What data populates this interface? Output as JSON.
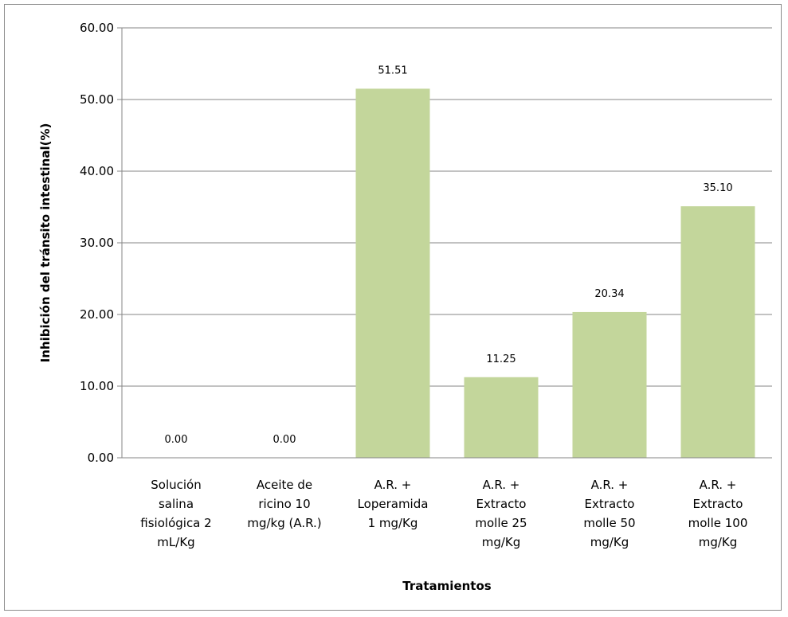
{
  "chart_data": {
    "type": "bar",
    "title": "",
    "xlabel": "Tratamientos",
    "ylabel": "Inhibición del tránsito intestinal(%)",
    "ylim": [
      0,
      60
    ],
    "yticks": [
      "0.00",
      "10.00",
      "20.00",
      "30.00",
      "40.00",
      "50.00",
      "60.00"
    ],
    "grid": true,
    "legend": "none",
    "bar_color": "#c3d69b",
    "categories": [
      [
        "Solución",
        "salina",
        "fisiológica 2",
        "mL/Kg"
      ],
      [
        "Aceite de",
        "ricino 10",
        "mg/kg (A.R.)"
      ],
      [
        "A.R. +",
        "Loperamida",
        "1 mg/Kg"
      ],
      [
        "A.R. +",
        "Extracto",
        "molle 25",
        "mg/Kg"
      ],
      [
        "A.R. +",
        "Extracto",
        "molle 50",
        "mg/Kg"
      ],
      [
        "A.R. +",
        "Extracto",
        "molle 100",
        "mg/Kg"
      ]
    ],
    "values": [
      0.0,
      0.0,
      51.51,
      11.25,
      20.34,
      35.1
    ],
    "data_labels": [
      "0.00",
      "0.00",
      "51.51",
      "11.25",
      "20.34",
      "35.10"
    ]
  }
}
